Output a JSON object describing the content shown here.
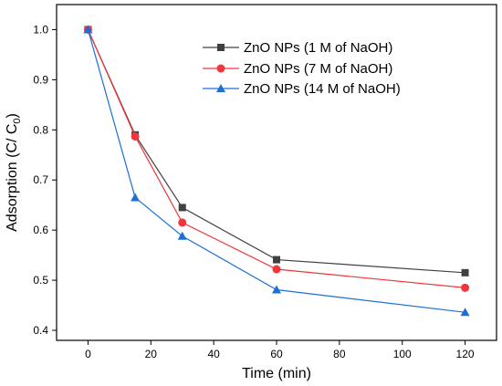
{
  "chart_data": {
    "type": "line",
    "xlabel": "Time (min)",
    "ylabel_main": "Adsorption (C/ C",
    "ylabel_sub": "0",
    "ylabel_close": ")",
    "xlim": [
      -10,
      130
    ],
    "ylim": [
      0.38,
      1.05
    ],
    "xticks": [
      0,
      20,
      40,
      60,
      80,
      100,
      120
    ],
    "xtick_labels": [
      "0",
      "20",
      "40",
      "60",
      "80",
      "100",
      "120"
    ],
    "yticks": [
      0.4,
      0.5,
      0.6,
      0.7,
      0.8,
      0.9,
      1.0
    ],
    "ytick_labels": [
      "0.4",
      "0.5",
      "0.6",
      "0.7",
      "0.8",
      "0.9",
      "1.0"
    ],
    "grid": false,
    "legend_position": "top-right",
    "x": [
      0,
      15,
      30,
      60,
      120
    ],
    "series": [
      {
        "name": "ZnO NPs (1 M of NaOH)",
        "marker": "square",
        "color": "#404040",
        "values": [
          1.0,
          0.79,
          0.645,
          0.541,
          0.515
        ]
      },
      {
        "name": "ZnO NPs (7 M of NaOH)",
        "marker": "circle",
        "color": "#f2353a",
        "values": [
          1.0,
          0.787,
          0.615,
          0.522,
          0.485
        ]
      },
      {
        "name": "ZnO NPs (14 M of NaOH)",
        "marker": "triangle",
        "color": "#1c6fd6",
        "values": [
          1.0,
          0.665,
          0.588,
          0.481,
          0.436
        ]
      }
    ]
  }
}
